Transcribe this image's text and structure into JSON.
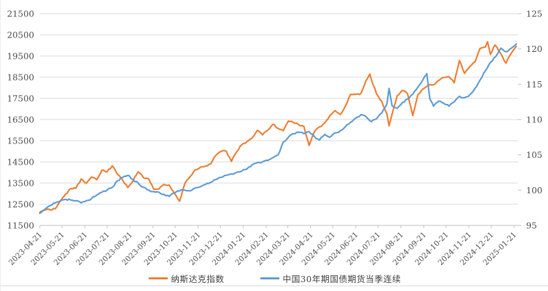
{
  "chart_data": {
    "type": "line",
    "title": "",
    "grid": "horizontal",
    "legend_position": "bottom",
    "gridline_color": "#d9d9d9",
    "axis_line_color": "#bfbfbf",
    "tick_label_color": "#4a4a4a",
    "x_range": {
      "start": "2023-04-21",
      "end": "2025-01-26"
    },
    "x_tick_labels": [
      "2023-04-21",
      "2023-05-21",
      "2023-06-21",
      "2023-07-21",
      "2023-08-21",
      "2023-09-21",
      "2023-10-21",
      "2023-11-21",
      "2023-12-21",
      "2024-01-21",
      "2024-02-21",
      "2024-03-21",
      "2024-04-21",
      "2024-05-21",
      "2024-06-21",
      "2024-07-21",
      "2024-08-21",
      "2024-09-21",
      "2024-10-21",
      "2024-11-21",
      "2024-12-21",
      "2025-01-21"
    ],
    "left_axis": {
      "min": 11500,
      "max": 21500,
      "ticks": [
        21500,
        20500,
        19500,
        18500,
        17500,
        16500,
        15500,
        14500,
        13500,
        12500,
        11500
      ]
    },
    "right_axis": {
      "min": 95,
      "max": 125,
      "ticks": [
        125,
        120,
        115,
        110,
        105,
        100,
        95
      ]
    },
    "series": [
      {
        "name": "纳斯达克指数",
        "color": "#ED7D31",
        "axis": "left",
        "points": [
          [
            "2023-04-21",
            12072
          ],
          [
            "2023-04-28",
            12227
          ],
          [
            "2023-05-05",
            12235
          ],
          [
            "2023-05-12",
            12285
          ],
          [
            "2023-05-19",
            12658
          ],
          [
            "2023-05-26",
            12976
          ],
          [
            "2023-06-02",
            13241
          ],
          [
            "2023-06-09",
            13259
          ],
          [
            "2023-06-16",
            13690
          ],
          [
            "2023-06-23",
            13493
          ],
          [
            "2023-06-30",
            13788
          ],
          [
            "2023-07-07",
            13661
          ],
          [
            "2023-07-14",
            14114
          ],
          [
            "2023-07-21",
            14033
          ],
          [
            "2023-07-28",
            14317
          ],
          [
            "2023-08-04",
            13909
          ],
          [
            "2023-08-11",
            13645
          ],
          [
            "2023-08-18",
            13291
          ],
          [
            "2023-08-25",
            13591
          ],
          [
            "2023-09-01",
            14032
          ],
          [
            "2023-09-08",
            13762
          ],
          [
            "2023-09-15",
            13708
          ],
          [
            "2023-09-22",
            13212
          ],
          [
            "2023-09-29",
            13219
          ],
          [
            "2023-10-06",
            13431
          ],
          [
            "2023-10-13",
            13407
          ],
          [
            "2023-10-20",
            13018
          ],
          [
            "2023-10-27",
            12643
          ],
          [
            "2023-11-03",
            13478
          ],
          [
            "2023-11-10",
            13798
          ],
          [
            "2023-11-17",
            14125
          ],
          [
            "2023-11-24",
            14251
          ],
          [
            "2023-12-01",
            14305
          ],
          [
            "2023-12-08",
            14404
          ],
          [
            "2023-12-15",
            14814
          ],
          [
            "2023-12-22",
            14993
          ],
          [
            "2023-12-29",
            15011
          ],
          [
            "2024-01-05",
            14524
          ],
          [
            "2024-01-12",
            14973
          ],
          [
            "2024-01-19",
            15311
          ],
          [
            "2024-01-26",
            15455
          ],
          [
            "2024-02-02",
            15629
          ],
          [
            "2024-02-09",
            15991
          ],
          [
            "2024-02-16",
            15776
          ],
          [
            "2024-02-23",
            15997
          ],
          [
            "2024-03-01",
            16275
          ],
          [
            "2024-03-08",
            16085
          ],
          [
            "2024-03-15",
            15973
          ],
          [
            "2024-03-22",
            16429
          ],
          [
            "2024-03-28",
            16379
          ],
          [
            "2024-04-05",
            16249
          ],
          [
            "2024-04-12",
            16175
          ],
          [
            "2024-04-19",
            15282
          ],
          [
            "2024-04-26",
            15928
          ],
          [
            "2024-05-03",
            16156
          ],
          [
            "2024-05-10",
            16341
          ],
          [
            "2024-05-17",
            16686
          ],
          [
            "2024-05-24",
            16921
          ],
          [
            "2024-05-31",
            16735
          ],
          [
            "2024-06-07",
            17133
          ],
          [
            "2024-06-14",
            17689
          ],
          [
            "2024-06-21",
            17689
          ],
          [
            "2024-06-28",
            17733
          ],
          [
            "2024-07-05",
            18353
          ],
          [
            "2024-07-10",
            18647
          ],
          [
            "2024-07-12",
            18398
          ],
          [
            "2024-07-19",
            17727
          ],
          [
            "2024-07-26",
            17358
          ],
          [
            "2024-08-02",
            16776
          ],
          [
            "2024-08-05",
            16200
          ],
          [
            "2024-08-09",
            16745
          ],
          [
            "2024-08-16",
            17632
          ],
          [
            "2024-08-23",
            17877
          ],
          [
            "2024-08-30",
            17714
          ],
          [
            "2024-09-06",
            16691
          ],
          [
            "2024-09-13",
            17684
          ],
          [
            "2024-09-20",
            17948
          ],
          [
            "2024-09-27",
            18120
          ],
          [
            "2024-10-04",
            18138
          ],
          [
            "2024-10-11",
            18343
          ],
          [
            "2024-10-18",
            18490
          ],
          [
            "2024-10-25",
            18519
          ],
          [
            "2024-11-01",
            18240
          ],
          [
            "2024-11-08",
            19287
          ],
          [
            "2024-11-15",
            18680
          ],
          [
            "2024-11-22",
            19004
          ],
          [
            "2024-11-29",
            19218
          ],
          [
            "2024-12-06",
            19860
          ],
          [
            "2024-12-13",
            19927
          ],
          [
            "2024-12-16",
            20174
          ],
          [
            "2024-12-20",
            19573
          ],
          [
            "2024-12-26",
            20020
          ],
          [
            "2025-01-03",
            19622
          ],
          [
            "2025-01-10",
            19162
          ],
          [
            "2025-01-17",
            19630
          ],
          [
            "2025-01-24",
            19954
          ]
        ]
      },
      {
        "name": "中国30年期国债期货当季连续",
        "color": "#5B9BD5",
        "axis": "right",
        "points": [
          [
            "2023-04-21",
            96.8
          ],
          [
            "2023-04-28",
            97.3
          ],
          [
            "2023-05-05",
            97.8
          ],
          [
            "2023-05-12",
            98.2
          ],
          [
            "2023-05-19",
            98.5
          ],
          [
            "2023-05-26",
            98.7
          ],
          [
            "2023-06-02",
            98.6
          ],
          [
            "2023-06-09",
            98.5
          ],
          [
            "2023-06-16",
            98.2
          ],
          [
            "2023-06-23",
            98.5
          ],
          [
            "2023-06-30",
            98.8
          ],
          [
            "2023-07-07",
            99.3
          ],
          [
            "2023-07-14",
            99.7
          ],
          [
            "2023-07-21",
            100.0
          ],
          [
            "2023-07-28",
            100.4
          ],
          [
            "2023-08-04",
            101.3
          ],
          [
            "2023-08-11",
            101.8
          ],
          [
            "2023-08-18",
            102.1
          ],
          [
            "2023-08-25",
            101.5
          ],
          [
            "2023-09-01",
            101.0
          ],
          [
            "2023-09-08",
            100.4
          ],
          [
            "2023-09-15",
            100.0
          ],
          [
            "2023-09-22",
            99.8
          ],
          [
            "2023-09-29",
            99.7
          ],
          [
            "2023-10-06",
            99.4
          ],
          [
            "2023-10-13",
            99.1
          ],
          [
            "2023-10-20",
            99.6
          ],
          [
            "2023-10-27",
            99.9
          ],
          [
            "2023-11-03",
            100.0
          ],
          [
            "2023-11-10",
            99.9
          ],
          [
            "2023-11-17",
            100.3
          ],
          [
            "2023-11-24",
            100.5
          ],
          [
            "2023-12-01",
            100.8
          ],
          [
            "2023-12-08",
            101.1
          ],
          [
            "2023-12-15",
            101.5
          ],
          [
            "2023-12-22",
            101.8
          ],
          [
            "2023-12-29",
            102.1
          ],
          [
            "2024-01-05",
            102.3
          ],
          [
            "2024-01-12",
            102.5
          ],
          [
            "2024-01-19",
            102.7
          ],
          [
            "2024-01-26",
            103.0
          ],
          [
            "2024-02-02",
            103.6
          ],
          [
            "2024-02-09",
            103.9
          ],
          [
            "2024-02-16",
            104.0
          ],
          [
            "2024-02-23",
            104.2
          ],
          [
            "2024-03-01",
            104.6
          ],
          [
            "2024-03-08",
            105.0
          ],
          [
            "2024-03-15",
            106.8
          ],
          [
            "2024-03-22",
            107.5
          ],
          [
            "2024-03-28",
            108.0
          ],
          [
            "2024-04-05",
            108.2
          ],
          [
            "2024-04-12",
            108.0
          ],
          [
            "2024-04-19",
            108.3
          ],
          [
            "2024-04-26",
            107.6
          ],
          [
            "2024-05-03",
            107.1
          ],
          [
            "2024-05-10",
            107.9
          ],
          [
            "2024-05-17",
            107.5
          ],
          [
            "2024-05-24",
            108.1
          ],
          [
            "2024-05-31",
            108.4
          ],
          [
            "2024-06-07",
            109.0
          ],
          [
            "2024-06-14",
            109.6
          ],
          [
            "2024-06-21",
            110.2
          ],
          [
            "2024-06-28",
            110.7
          ],
          [
            "2024-07-05",
            110.4
          ],
          [
            "2024-07-12",
            109.7
          ],
          [
            "2024-07-19",
            110.1
          ],
          [
            "2024-07-26",
            110.9
          ],
          [
            "2024-08-02",
            112.2
          ],
          [
            "2024-08-05",
            114.4
          ],
          [
            "2024-08-09",
            112.0
          ],
          [
            "2024-08-16",
            111.6
          ],
          [
            "2024-08-23",
            112.4
          ],
          [
            "2024-08-30",
            112.9
          ],
          [
            "2024-09-06",
            113.6
          ],
          [
            "2024-09-13",
            114.6
          ],
          [
            "2024-09-20",
            115.7
          ],
          [
            "2024-09-25",
            116.5
          ],
          [
            "2024-09-29",
            113.0
          ],
          [
            "2024-10-04",
            111.9
          ],
          [
            "2024-10-11",
            112.6
          ],
          [
            "2024-10-18",
            112.3
          ],
          [
            "2024-10-25",
            111.9
          ],
          [
            "2024-11-01",
            112.5
          ],
          [
            "2024-11-08",
            113.3
          ],
          [
            "2024-11-15",
            113.1
          ],
          [
            "2024-11-22",
            113.5
          ],
          [
            "2024-11-29",
            114.4
          ],
          [
            "2024-12-06",
            115.6
          ],
          [
            "2024-12-13",
            116.9
          ],
          [
            "2024-12-20",
            118.1
          ],
          [
            "2024-12-27",
            118.9
          ],
          [
            "2025-01-03",
            120.1
          ],
          [
            "2025-01-10",
            119.6
          ],
          [
            "2025-01-17",
            120.1
          ],
          [
            "2025-01-24",
            120.7
          ]
        ]
      }
    ]
  }
}
